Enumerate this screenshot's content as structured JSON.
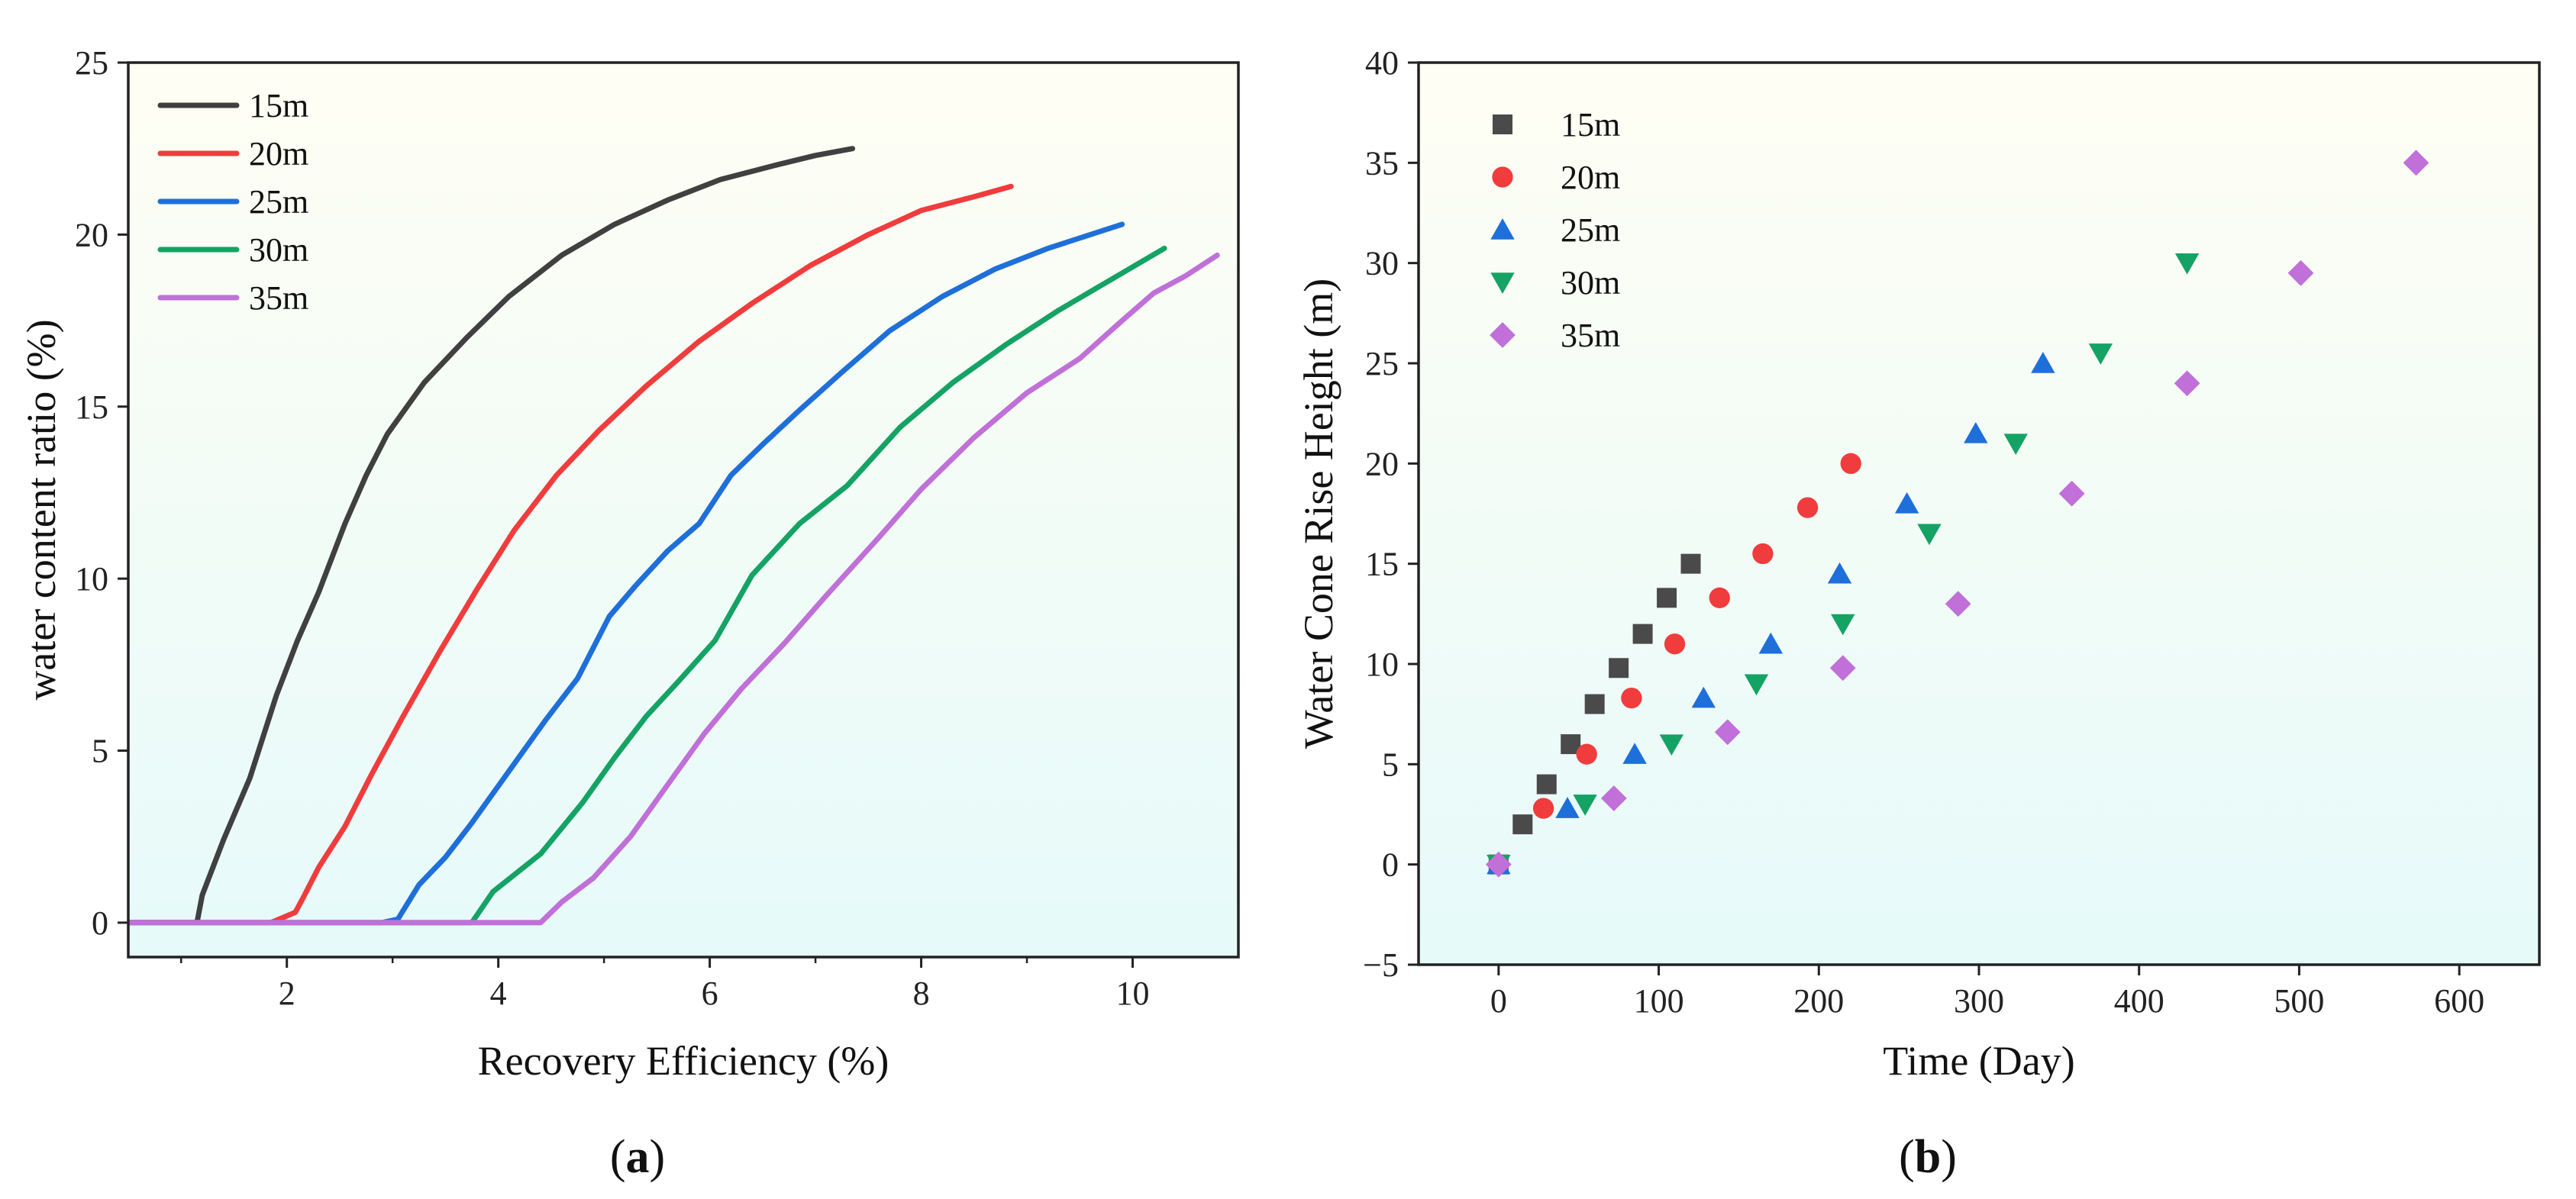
{
  "chart_data": [
    {
      "type": "line",
      "panel_label": "a",
      "xlabel": "Recovery Efficiency (%)",
      "ylabel": "water content ratio (%)",
      "xlim": [
        0.5,
        11.0
      ],
      "ylim": [
        -1,
        25
      ],
      "xticks": [
        2,
        4,
        6,
        8,
        10
      ],
      "yticks": [
        0,
        5,
        10,
        15,
        20,
        25
      ],
      "legend_position": "top-left",
      "series": [
        {
          "name": "15m",
          "color": "#404040",
          "x": [
            0.5,
            1.15,
            1.2,
            1.4,
            1.65,
            1.9,
            2.1,
            2.3,
            2.55,
            2.75,
            2.95,
            3.3,
            3.7,
            4.1,
            4.6,
            5.1,
            5.6,
            6.1,
            6.6,
            7.0,
            7.35
          ],
          "y": [
            0,
            0,
            0.8,
            2.4,
            4.2,
            6.6,
            8.2,
            9.6,
            11.6,
            13.0,
            14.2,
            15.7,
            17.0,
            18.2,
            19.4,
            20.3,
            21.0,
            21.6,
            22.0,
            22.3,
            22.5
          ]
        },
        {
          "name": "20m",
          "color": "#f03c3c",
          "x": [
            0.5,
            1.85,
            2.08,
            2.15,
            2.3,
            2.55,
            2.8,
            3.1,
            3.45,
            3.8,
            4.15,
            4.55,
            4.95,
            5.4,
            5.9,
            6.4,
            6.95,
            7.5,
            8.0,
            8.5,
            8.85
          ],
          "y": [
            0,
            0,
            0.3,
            0.7,
            1.6,
            2.8,
            4.3,
            6.0,
            7.9,
            9.7,
            11.4,
            13.0,
            14.3,
            15.6,
            16.9,
            18.0,
            19.1,
            20.0,
            20.7,
            21.1,
            21.4
          ]
        },
        {
          "name": "25m",
          "color": "#1e6fd9",
          "x": [
            0.5,
            2.9,
            3.05,
            3.25,
            3.5,
            3.75,
            4.1,
            4.45,
            4.75,
            5.05,
            5.3,
            5.6,
            5.9,
            6.2,
            6.5,
            6.85,
            7.25,
            7.7,
            8.2,
            8.7,
            9.2,
            9.6,
            9.9
          ],
          "y": [
            0,
            0,
            0.1,
            1.1,
            1.9,
            2.9,
            4.4,
            5.9,
            7.1,
            8.9,
            9.8,
            10.8,
            11.6,
            13.0,
            13.9,
            14.9,
            16.0,
            17.2,
            18.2,
            19.0,
            19.6,
            20.0,
            20.3
          ]
        },
        {
          "name": "30m",
          "color": "#14a364",
          "x": [
            0.5,
            3.75,
            3.95,
            4.4,
            4.8,
            5.1,
            5.4,
            5.7,
            6.05,
            6.4,
            6.85,
            7.3,
            7.8,
            8.3,
            8.8,
            9.3,
            9.8,
            10.3
          ],
          "y": [
            0,
            0,
            0.9,
            2.0,
            3.5,
            4.8,
            6.0,
            7.0,
            8.2,
            10.1,
            11.6,
            12.7,
            14.4,
            15.7,
            16.8,
            17.8,
            18.7,
            19.6
          ]
        },
        {
          "name": "35m",
          "color": "#c070d8",
          "x": [
            0.5,
            4.4,
            4.6,
            4.9,
            5.25,
            5.6,
            5.95,
            6.3,
            6.7,
            7.1,
            7.6,
            8.0,
            8.5,
            9.0,
            9.5,
            9.9,
            10.2,
            10.5,
            10.8
          ],
          "y": [
            0,
            0,
            0.6,
            1.3,
            2.5,
            4.0,
            5.5,
            6.8,
            8.1,
            9.5,
            11.2,
            12.6,
            14.1,
            15.4,
            16.4,
            17.5,
            18.3,
            18.8,
            19.4
          ]
        }
      ]
    },
    {
      "type": "scatter",
      "panel_label": "b",
      "xlabel": "Time (Day)",
      "ylabel": "Water Cone Rise Height (m)",
      "xlim": [
        -50,
        650
      ],
      "ylim": [
        -5,
        40
      ],
      "xticks": [
        0,
        100,
        200,
        300,
        400,
        500,
        600
      ],
      "yticks": [
        -5,
        0,
        5,
        10,
        15,
        20,
        25,
        30,
        35,
        40
      ],
      "legend_position": "top-left",
      "series": [
        {
          "name": "15m",
          "color": "#4a4a4a",
          "marker": "square",
          "x": [
            0,
            15,
            30,
            45,
            60,
            75,
            90,
            105,
            120
          ],
          "y": [
            0,
            2,
            4,
            6,
            8,
            9.8,
            11.5,
            13.3,
            15
          ]
        },
        {
          "name": "20m",
          "color": "#f03c3c",
          "marker": "circle",
          "x": [
            0,
            28,
            55,
            83,
            110,
            138,
            165,
            193,
            220
          ],
          "y": [
            0,
            2.8,
            5.5,
            8.3,
            11,
            13.3,
            15.5,
            17.8,
            20
          ]
        },
        {
          "name": "25m",
          "color": "#1e6fd9",
          "marker": "triangle-up",
          "x": [
            0,
            43,
            85,
            128,
            170,
            213,
            255,
            298,
            340
          ],
          "y": [
            0,
            2.8,
            5.5,
            8.3,
            11,
            14.5,
            18,
            21.5,
            25
          ]
        },
        {
          "name": "30m",
          "color": "#14a364",
          "marker": "triangle-down",
          "x": [
            0,
            54,
            108,
            161,
            215,
            269,
            323,
            376,
            430
          ],
          "y": [
            0,
            3,
            6,
            9,
            12,
            16.5,
            21,
            25.5,
            30
          ]
        },
        {
          "name": "35m",
          "color": "#c070d8",
          "marker": "diamond",
          "x": [
            0,
            72,
            143,
            215,
            287,
            358,
            430,
            501,
            573
          ],
          "y": [
            0,
            3.3,
            6.6,
            9.8,
            13,
            18.5,
            24,
            29.5,
            35
          ]
        }
      ]
    }
  ]
}
